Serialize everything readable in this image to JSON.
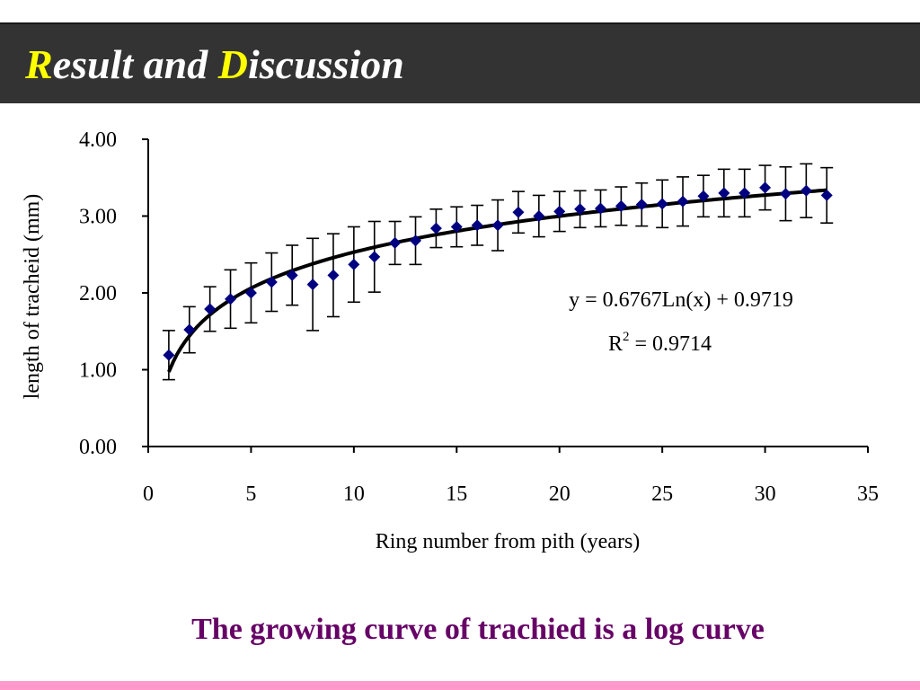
{
  "slide": {
    "title_initial_1": "R",
    "title_rest_1": "esult and ",
    "title_initial_2": "D",
    "title_rest_2": "iscussion",
    "caption": "The growing curve of trachied is a log curve",
    "title_accent_color": "#ffff00",
    "caption_color": "#660066",
    "bottom_stripe_color": "#ff99cc"
  },
  "chart_data": {
    "type": "scatter",
    "xlabel": "Ring number from pith (years)",
    "ylabel": "length of tracheid (mm)",
    "xlim": [
      0,
      35
    ],
    "ylim": [
      0,
      4
    ],
    "x_ticks": [
      "0",
      "5",
      "10",
      "15",
      "20",
      "25",
      "30",
      "35"
    ],
    "y_ticks": [
      "0.00",
      "1.00",
      "2.00",
      "3.00",
      "4.00"
    ],
    "grid": false,
    "marker_color": "#000080",
    "series": [
      {
        "x": [
          1,
          2,
          3,
          4,
          5,
          6,
          7,
          8,
          9,
          10,
          11,
          12,
          13,
          14,
          15,
          16,
          17,
          18,
          19,
          20,
          21,
          22,
          23,
          24,
          25,
          26,
          27,
          28,
          29,
          30,
          31,
          32,
          33
        ],
        "y": [
          1.19,
          1.52,
          1.79,
          1.92,
          2.0,
          2.14,
          2.23,
          2.11,
          2.23,
          2.37,
          2.47,
          2.65,
          2.68,
          2.84,
          2.86,
          2.88,
          2.88,
          3.05,
          3.0,
          3.06,
          3.09,
          3.1,
          3.13,
          3.15,
          3.16,
          3.19,
          3.26,
          3.3,
          3.3,
          3.37,
          3.29,
          3.33,
          3.27
        ],
        "err": [
          0.32,
          0.3,
          0.29,
          0.38,
          0.39,
          0.38,
          0.39,
          0.6,
          0.54,
          0.49,
          0.46,
          0.28,
          0.31,
          0.25,
          0.26,
          0.26,
          0.33,
          0.27,
          0.27,
          0.26,
          0.24,
          0.24,
          0.25,
          0.28,
          0.31,
          0.32,
          0.27,
          0.31,
          0.31,
          0.29,
          0.35,
          0.35,
          0.36
        ]
      }
    ],
    "trendline": {
      "type": "log",
      "a": 0.6767,
      "b": 0.9719,
      "equation": "y = 0.6767Ln(x) + 0.9719",
      "r2_prefix": "R",
      "r2_sup": "2",
      "r2_value": " = 0.9714"
    }
  }
}
